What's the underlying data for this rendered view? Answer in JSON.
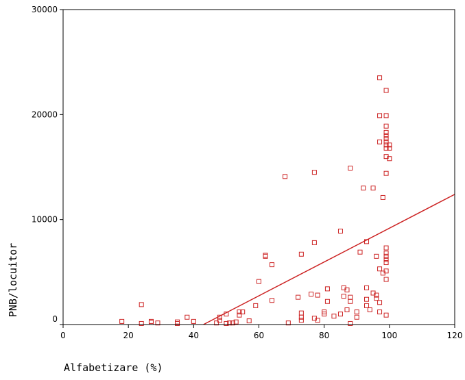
{
  "chart_data": {
    "type": "scatter",
    "title": "",
    "xlabel": "Alfabetizare (%)",
    "ylabel": "PNB/locuitor",
    "xlim": [
      0,
      120
    ],
    "ylim": [
      0,
      30000
    ],
    "xticks": [
      0,
      20,
      40,
      60,
      80,
      100,
      120
    ],
    "yticks": [
      0,
      10000,
      20000,
      30000
    ],
    "grid": false,
    "legend": "none",
    "marker": "open-square",
    "colors": {
      "marker": "#cc2222",
      "fit_line": "#cc2222",
      "axis": "#000000"
    },
    "fit_line": {
      "type": "linear",
      "points": [
        [
          43,
          0
        ],
        [
          120,
          12400
        ]
      ]
    },
    "series": [
      {
        "points": [
          [
            18,
            300
          ],
          [
            24,
            1900
          ],
          [
            24,
            100
          ],
          [
            27,
            300
          ],
          [
            27,
            200
          ],
          [
            29,
            150
          ],
          [
            35,
            100
          ],
          [
            35,
            250
          ],
          [
            38,
            700
          ],
          [
            40,
            300
          ],
          [
            47,
            150
          ],
          [
            48,
            400
          ],
          [
            48,
            700
          ],
          [
            50,
            1000
          ],
          [
            50,
            100
          ],
          [
            51,
            150
          ],
          [
            52,
            150
          ],
          [
            53,
            250
          ],
          [
            54,
            1200
          ],
          [
            54,
            900
          ],
          [
            55,
            1200
          ],
          [
            57,
            350
          ],
          [
            59,
            1800
          ],
          [
            60,
            4100
          ],
          [
            62,
            6500
          ],
          [
            62,
            6600
          ],
          [
            64,
            5700
          ],
          [
            64,
            2300
          ],
          [
            68,
            14100
          ],
          [
            69,
            150
          ],
          [
            72,
            2600
          ],
          [
            73,
            6700
          ],
          [
            73,
            1100
          ],
          [
            73,
            700
          ],
          [
            73,
            400
          ],
          [
            76,
            2900
          ],
          [
            77,
            14500
          ],
          [
            77,
            7800
          ],
          [
            77,
            600
          ],
          [
            78,
            2800
          ],
          [
            78,
            400
          ],
          [
            80,
            1200
          ],
          [
            80,
            1000
          ],
          [
            81,
            3400
          ],
          [
            81,
            2200
          ],
          [
            83,
            800
          ],
          [
            85,
            8900
          ],
          [
            85,
            1000
          ],
          [
            86,
            3500
          ],
          [
            86,
            2700
          ],
          [
            87,
            1400
          ],
          [
            87,
            3300
          ],
          [
            88,
            14900
          ],
          [
            88,
            2600
          ],
          [
            88,
            2200
          ],
          [
            88,
            100
          ],
          [
            90,
            1200
          ],
          [
            90,
            700
          ],
          [
            91,
            6900
          ],
          [
            92,
            13000
          ],
          [
            93,
            7900
          ],
          [
            93,
            3500
          ],
          [
            93,
            2400
          ],
          [
            93,
            1800
          ],
          [
            94,
            1400
          ],
          [
            95,
            13000
          ],
          [
            95,
            3000
          ],
          [
            96,
            6500
          ],
          [
            96,
            2800
          ],
          [
            96,
            2500
          ],
          [
            97,
            23500
          ],
          [
            97,
            19900
          ],
          [
            97,
            17400
          ],
          [
            97,
            5300
          ],
          [
            97,
            2100
          ],
          [
            97,
            1200
          ],
          [
            98,
            12100
          ],
          [
            98,
            4900
          ],
          [
            99,
            22300
          ],
          [
            99,
            19900
          ],
          [
            99,
            18900
          ],
          [
            99,
            18300
          ],
          [
            99,
            18000
          ],
          [
            99,
            17700
          ],
          [
            99,
            17400
          ],
          [
            99,
            17100
          ],
          [
            99,
            16800
          ],
          [
            99,
            16000
          ],
          [
            99,
            14400
          ],
          [
            99,
            7300
          ],
          [
            99,
            6800
          ],
          [
            99,
            6500
          ],
          [
            99,
            6200
          ],
          [
            99,
            5900
          ],
          [
            99,
            5100
          ],
          [
            99,
            4300
          ],
          [
            99,
            900
          ],
          [
            100,
            17100
          ],
          [
            100,
            16800
          ],
          [
            100,
            15800
          ]
        ]
      }
    ]
  }
}
